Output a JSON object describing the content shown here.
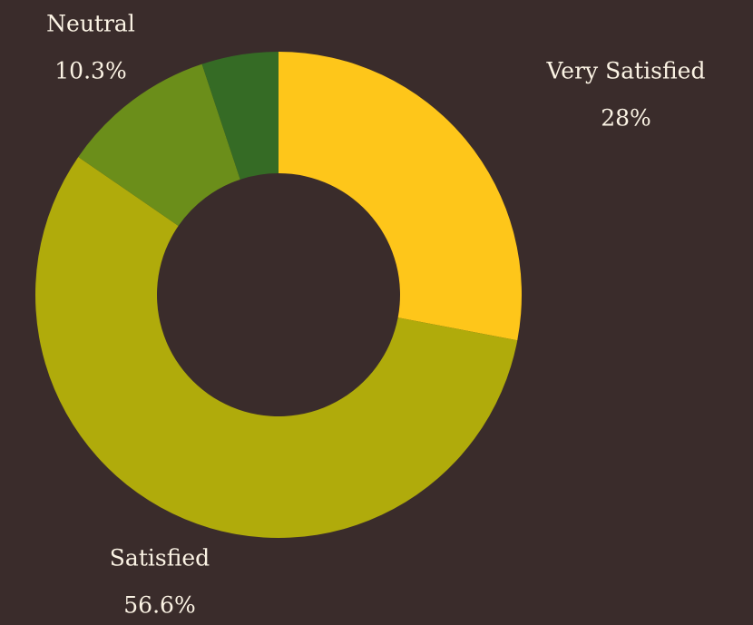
{
  "chart_data": {
    "type": "donut",
    "categories": [
      "Very Satisfied",
      "Satisfied",
      "Neutral",
      null
    ],
    "values": [
      28,
      56.6,
      10.3,
      5.1
    ],
    "value_labels": [
      "28%",
      "56.6%",
      "10.3%",
      null
    ],
    "colors": [
      "#fec61a",
      "#b0ab0b",
      "#6b8e1a",
      "#356b25"
    ]
  }
}
